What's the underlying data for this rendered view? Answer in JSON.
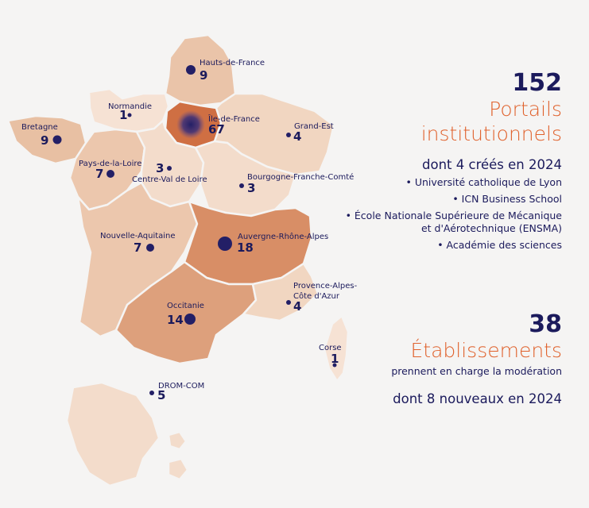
{
  "colors": {
    "background": "#f5f4f3",
    "text": "#1b1a5c",
    "accent": "#e0622d",
    "dot": "#231f66"
  },
  "regions": [
    {
      "id": "hauts-de-france",
      "name": "Hauts-de-France",
      "count": "9",
      "fill": "#eac4a9"
    },
    {
      "id": "normandie",
      "name": "Normandie",
      "count": "1",
      "fill": "#f6e2d4"
    },
    {
      "id": "ile-de-france",
      "name": "Île-de-France",
      "count": "67",
      "fill": "#cf6f43"
    },
    {
      "id": "grand-est",
      "name": "Grand-Est",
      "count": "4",
      "fill": "#f1d6c1"
    },
    {
      "id": "bretagne",
      "name": "Bretagne",
      "count": "9",
      "fill": "#e8c0a3"
    },
    {
      "id": "pays-de-la-loire",
      "name": "Pays-de-la-Loire",
      "count": "7",
      "fill": "#ecc7ad"
    },
    {
      "id": "centre-val-de-loire",
      "name": "Centre-Val de Loire",
      "count": "3",
      "fill": "#f3dccb"
    },
    {
      "id": "bourgogne-franche-comte",
      "name": "Bourgogne-Franche-Comté",
      "count": "3",
      "fill": "#f3dccb"
    },
    {
      "id": "nouvelle-aquitaine",
      "name": "Nouvelle-Aquitaine",
      "count": "7",
      "fill": "#ecc7ad"
    },
    {
      "id": "auvergne-rhone-alpes",
      "name": "Auvergne-Rhône-Alpes",
      "count": "18",
      "fill": "#d88e66"
    },
    {
      "id": "occitanie",
      "name": "Occitanie",
      "count": "14",
      "fill": "#dda07c"
    },
    {
      "id": "provence-alpes-cote-azur",
      "name": "Provence-Alpes-Côte d'Azur",
      "name_line1": "Provence-Alpes-",
      "name_line2": "Côte d'Azur",
      "count": "4",
      "fill": "#f1d6c1"
    },
    {
      "id": "corse",
      "name": "Corse",
      "count": "1",
      "fill": "#f6e2d4"
    },
    {
      "id": "drom-com",
      "name": "DROM-COM",
      "count": "5",
      "fill": "#f3dccb"
    }
  ],
  "portails": {
    "count": "152",
    "label_line1": "Portails",
    "label_line2": "institutionnels",
    "created": "dont 4 créés en 2024",
    "items": [
      {
        "line1": "• Université catholique de Lyon"
      },
      {
        "line1": "• ICN Business School"
      },
      {
        "line1": "• École Nationale Supérieure de Mécanique",
        "line2": "et d'Aérotechnique (ENSMA)"
      },
      {
        "line1": "• Académie des sciences"
      }
    ]
  },
  "etablissements": {
    "count": "38",
    "label": "Établissements",
    "desc": "prennent en charge la modération",
    "new": "dont 8 nouveaux en 2024"
  }
}
